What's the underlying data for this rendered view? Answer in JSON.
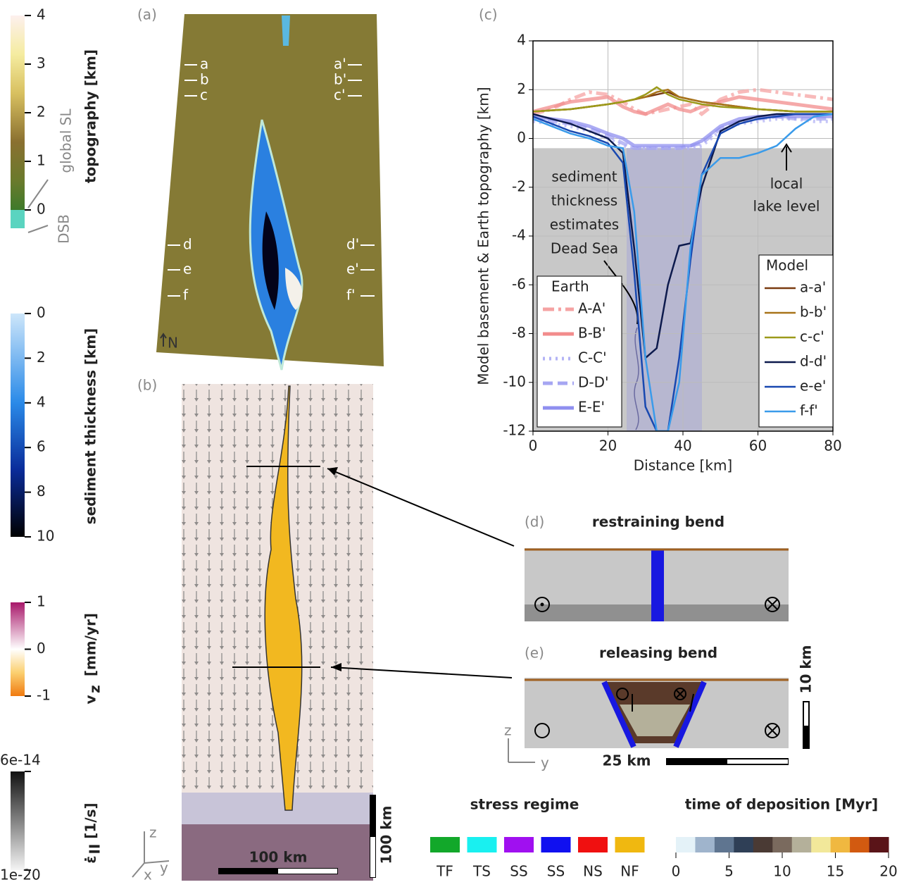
{
  "chart_data": {
    "type": "line",
    "x_label": "Distance [km]",
    "y_label": "Model basement & Earth topography [km]",
    "x": [
      0,
      5,
      10,
      15,
      20,
      24,
      27,
      30,
      33,
      36,
      39,
      42,
      45,
      50,
      55,
      60,
      65,
      70,
      75,
      80
    ],
    "xlim": [
      0,
      80
    ],
    "ylim": [
      -12,
      4
    ],
    "xticks": [
      0,
      20,
      40,
      60,
      80
    ],
    "yticks": [
      4,
      2,
      0,
      -2,
      -4,
      -6,
      -8,
      -10,
      -12
    ],
    "grid": true,
    "lake_level": -0.4,
    "series": [
      {
        "name": "A-A'",
        "group": "Earth",
        "color": "#f5a3a3",
        "dash": "dash-dot",
        "values": [
          1.0,
          1.2,
          1.6,
          1.9,
          1.8,
          1.5,
          1.2,
          1.0,
          1.1,
          1.2,
          1.3,
          1.4,
          1.0,
          1.6,
          1.9,
          2.0,
          1.9,
          1.8,
          1.7,
          1.6
        ]
      },
      {
        "name": "B-B'",
        "group": "Earth",
        "color": "#f28c8c",
        "dash": "solid",
        "values": [
          1.1,
          1.3,
          1.5,
          1.6,
          1.7,
          1.3,
          1.1,
          1.0,
          1.2,
          1.4,
          1.2,
          1.1,
          1.3,
          1.5,
          1.7,
          1.6,
          1.5,
          1.4,
          1.3,
          1.2
        ]
      },
      {
        "name": "C-C'",
        "group": "Earth",
        "color": "#b3b3f5",
        "dash": "dotted",
        "values": [
          0.7,
          0.6,
          0.5,
          0.3,
          0.0,
          -0.3,
          -0.4,
          -0.4,
          -0.4,
          -0.4,
          -0.4,
          -0.4,
          -0.3,
          0.3,
          0.6,
          0.7,
          0.8,
          0.8,
          0.7,
          0.7
        ]
      },
      {
        "name": "D-D'",
        "group": "Earth",
        "color": "#a6a6f2",
        "dash": "dashed",
        "values": [
          0.8,
          0.7,
          0.6,
          0.4,
          0.1,
          -0.2,
          -0.4,
          -0.4,
          -0.4,
          -0.4,
          -0.4,
          -0.3,
          -0.2,
          0.4,
          0.7,
          0.8,
          0.9,
          0.8,
          0.8,
          0.8
        ]
      },
      {
        "name": "E-E'",
        "group": "Earth",
        "color": "#8f8fef",
        "dash": "solid",
        "values": [
          0.9,
          0.8,
          0.7,
          0.5,
          0.2,
          0.0,
          -0.3,
          -0.3,
          -0.3,
          -0.3,
          -0.3,
          -0.3,
          -0.1,
          0.5,
          0.8,
          0.9,
          0.9,
          0.9,
          0.9,
          0.9
        ]
      },
      {
        "name": "a-a'",
        "group": "Model",
        "color": "#7a3b10",
        "dash": "solid",
        "values": [
          1.1,
          1.15,
          1.2,
          1.3,
          1.4,
          1.5,
          1.6,
          1.7,
          1.8,
          1.9,
          1.7,
          1.6,
          1.5,
          1.4,
          1.3,
          1.2,
          1.15,
          1.1,
          1.1,
          1.1
        ]
      },
      {
        "name": "b-b'",
        "group": "Model",
        "color": "#a8741a",
        "dash": "solid",
        "values": [
          1.1,
          1.15,
          1.2,
          1.3,
          1.4,
          1.5,
          1.6,
          1.7,
          1.9,
          2.0,
          1.7,
          1.6,
          1.5,
          1.4,
          1.3,
          1.2,
          1.15,
          1.1,
          1.1,
          1.1
        ]
      },
      {
        "name": "c-c'",
        "group": "Model",
        "color": "#9c9a1a",
        "dash": "solid",
        "values": [
          1.1,
          1.15,
          1.2,
          1.3,
          1.4,
          1.5,
          1.6,
          1.8,
          2.1,
          1.8,
          1.6,
          1.5,
          1.4,
          1.3,
          1.25,
          1.2,
          1.15,
          1.1,
          1.1,
          1.1
        ]
      },
      {
        "name": "d-d'",
        "group": "Model",
        "color": "#0d1a4d",
        "dash": "solid",
        "values": [
          1.0,
          0.8,
          0.6,
          0.3,
          0.0,
          -0.6,
          -4.5,
          -9.0,
          -8.6,
          -6.0,
          -4.4,
          -4.3,
          -2.0,
          0.3,
          0.7,
          0.9,
          1.0,
          1.0,
          1.0,
          1.0
        ]
      },
      {
        "name": "e-e'",
        "group": "Model",
        "color": "#1848b0",
        "dash": "solid",
        "values": [
          0.9,
          0.6,
          0.3,
          0.1,
          -0.2,
          -1.0,
          -5.5,
          -11.0,
          -12.0,
          -12.0,
          -9.0,
          -5.0,
          -1.5,
          0.2,
          0.6,
          0.8,
          0.9,
          1.0,
          1.0,
          1.0
        ]
      },
      {
        "name": "f-f'",
        "group": "Model",
        "color": "#3a9bea",
        "dash": "solid",
        "values": [
          0.8,
          0.5,
          0.2,
          0.0,
          -0.3,
          -0.4,
          -3.0,
          -9.0,
          -12.0,
          -12.0,
          -10.0,
          -4.5,
          -1.5,
          -0.8,
          -0.8,
          -0.6,
          -0.3,
          0.4,
          0.9,
          1.0
        ]
      }
    ],
    "legend_titles": {
      "Earth": "Earth",
      "Model": "Model"
    },
    "annotations": {
      "sediment": [
        "sediment",
        "thickness",
        "estimates",
        "Dead Sea"
      ],
      "lake": [
        "local",
        "lake level"
      ]
    }
  },
  "panel_labels": [
    "(a)",
    "(b)",
    "(c)",
    "(d)",
    "(e)"
  ],
  "topography_bar": {
    "label": "topography [km]",
    "ticks": [
      0,
      1,
      2,
      3,
      4
    ],
    "notes": [
      "global SL",
      "DSB"
    ]
  },
  "sediment_bar": {
    "label": "sediment thickness [km]",
    "ticks": [
      0,
      2,
      4,
      6,
      8,
      10
    ]
  },
  "vz_bar": {
    "symbol": "v",
    "subscript": "z",
    "unit": "[mm/yr]",
    "ticks": [
      -1,
      0,
      1
    ]
  },
  "strain_bar": {
    "symbol": "ε̇",
    "subscript": "II",
    "unit": "[1/s]",
    "ticks": [
      {
        "value": -20,
        "label": "1e-20"
      },
      {
        "value": -13.22,
        "label": "6e-14"
      }
    ]
  },
  "panel_a": {
    "left": [
      "a",
      "b",
      "c",
      "d",
      "e",
      "f"
    ],
    "right": [
      "a'",
      "b'",
      "c'",
      "d'",
      "e'",
      "f'"
    ],
    "north": "N"
  },
  "panel_b": {
    "scale": "100 km",
    "vertical_scale": "100 km",
    "axes": [
      "z",
      "y",
      "x"
    ]
  },
  "panel_d": {
    "title": "restraining bend"
  },
  "panel_e": {
    "title": "releasing bend",
    "scale": "25 km",
    "vertical_scale": "10 km",
    "axes": [
      "z",
      "y"
    ]
  },
  "stress_regime": {
    "title": "stress regime",
    "classes": [
      {
        "label": "TF",
        "color": "#12a82a"
      },
      {
        "label": "TS",
        "color": "#19f0f0"
      },
      {
        "label": "SS",
        "color": "#a010f0"
      },
      {
        "label": "SS",
        "color": "#1010f0"
      },
      {
        "label": "NS",
        "color": "#f01010"
      },
      {
        "label": "NF",
        "color": "#f0b810"
      }
    ]
  },
  "deposition": {
    "title": "time of deposition [Myr]",
    "xlim": [
      0,
      20
    ],
    "ticks": [
      0,
      5,
      10,
      15,
      20
    ],
    "colors": [
      "#e4f2f8",
      "#9fb4cc",
      "#5f7590",
      "#2f3f56",
      "#4a3a34",
      "#7a6a5e",
      "#b4b09a",
      "#f2e89a",
      "#f0b840",
      "#d25a10",
      "#5a1418"
    ]
  }
}
